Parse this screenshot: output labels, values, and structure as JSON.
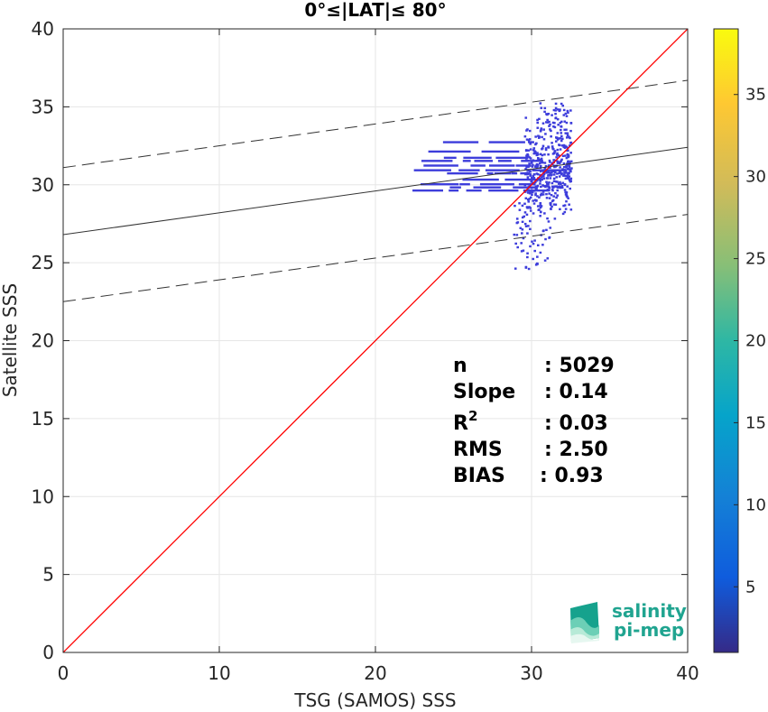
{
  "chart_data": {
    "type": "heatmap",
    "title": "0°≤|LAT|≤ 80°",
    "xlabel": "TSG (SAMOS) SSS",
    "ylabel": "Satellite SSS",
    "xlim": [
      0,
      40
    ],
    "ylim": [
      0,
      40
    ],
    "xticks": [
      "0",
      "10",
      "20",
      "30",
      "40"
    ],
    "yticks": [
      "0",
      "5",
      "10",
      "15",
      "20",
      "25",
      "30",
      "35",
      "40"
    ],
    "grid": true,
    "one_to_one_line": {
      "color": "#ff0000",
      "from": [
        0,
        0
      ],
      "to": [
        40,
        40
      ]
    },
    "regression": {
      "intercept": 26.8,
      "slope": 0.14,
      "band_offset": 4.3
    },
    "colorbar": {
      "range": [
        1,
        39
      ],
      "ticks": [
        "5",
        "10",
        "15",
        "20",
        "25",
        "30",
        "35"
      ],
      "colormap": "parula"
    },
    "density_summary": {
      "dominant_count_color": "#3d3ddb",
      "core_x_range": [
        29.5,
        32.5
      ],
      "core_y_range": [
        24.5,
        35.3
      ],
      "horizontal_streaks_x_start": 22
    },
    "stats": {
      "labels": [
        "n",
        "Slope",
        "R",
        "RMS",
        "BIAS"
      ],
      "r_superscript": "2",
      "values": [
        ": 5029",
        ": 0.14",
        ": 0.03",
        ": 2.50",
        ": 0.93"
      ]
    },
    "logo": {
      "line1": "salinity",
      "line2": "pi-mep"
    }
  }
}
